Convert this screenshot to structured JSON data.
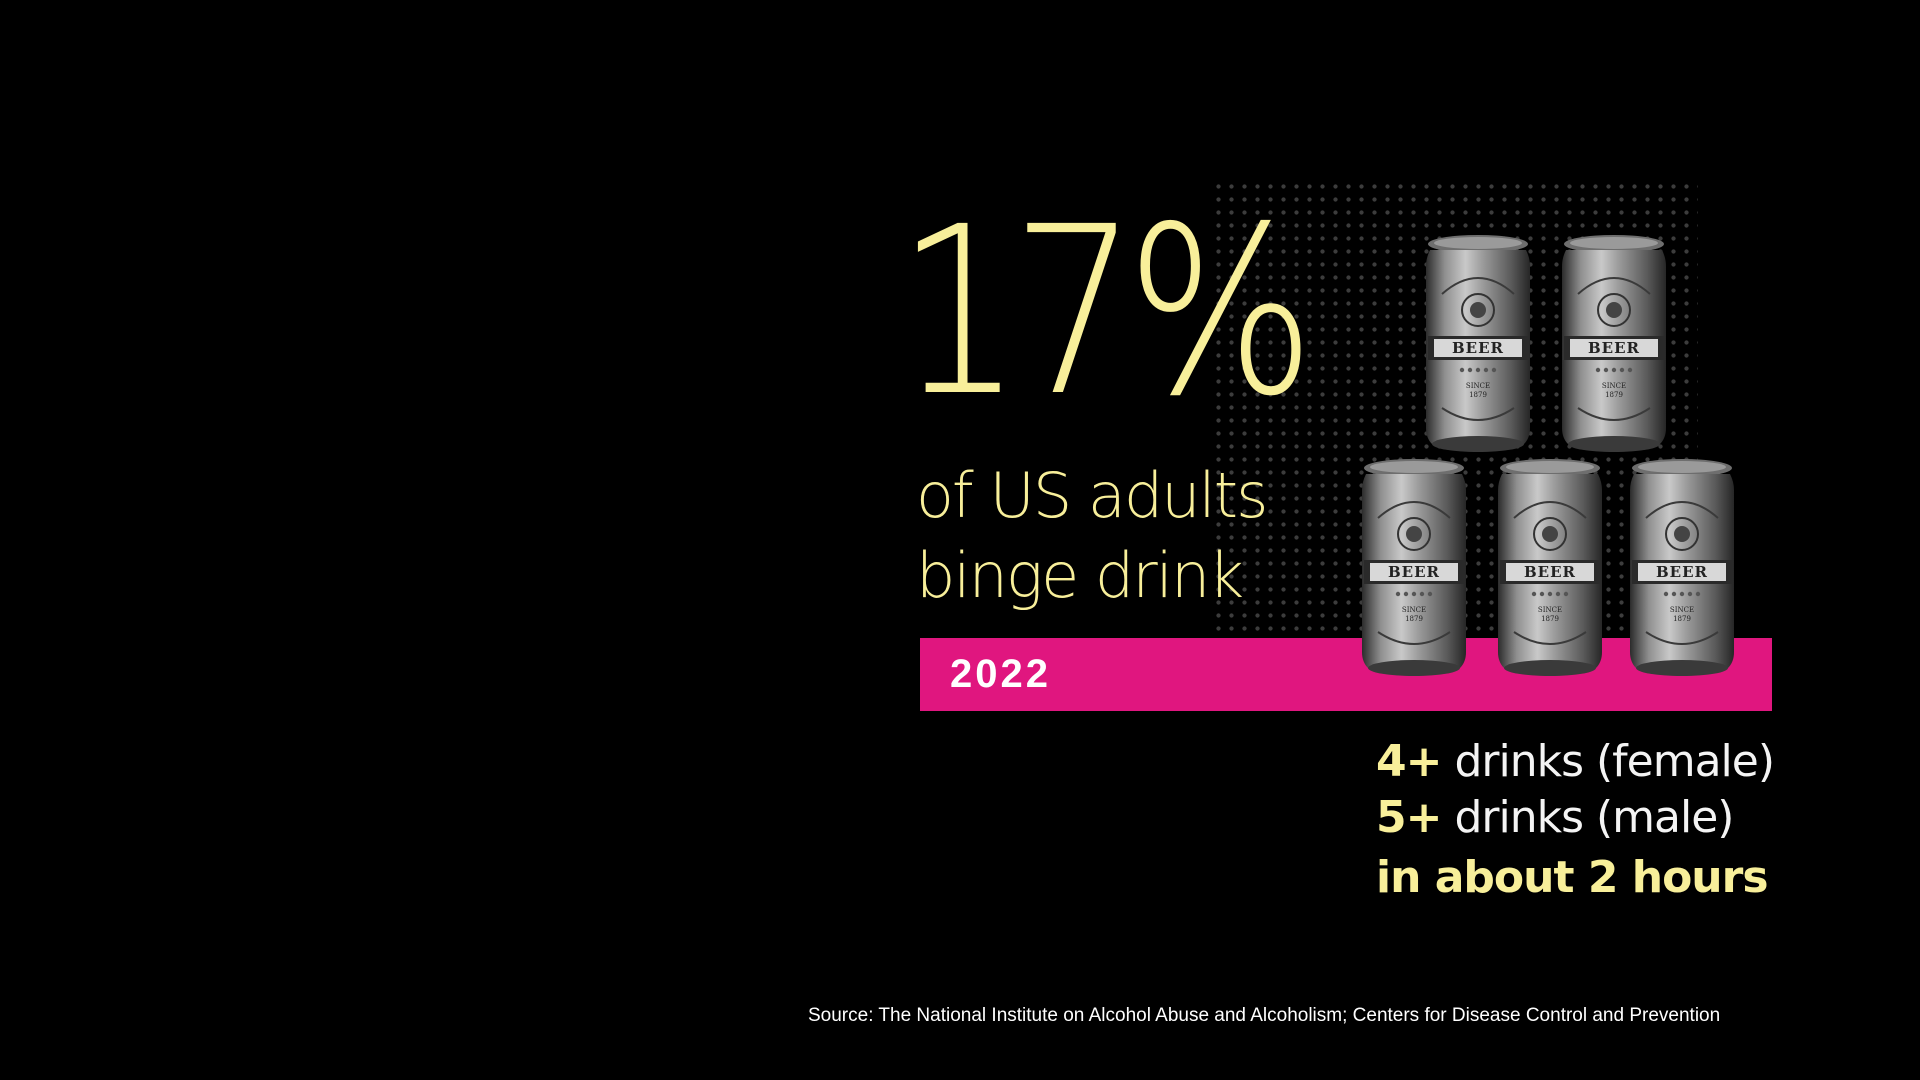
{
  "stat": {
    "value": "17%"
  },
  "subtitle": {
    "line1": "of US adults",
    "line2": "binge drink"
  },
  "year": "2022",
  "can_label": {
    "text": "BEER",
    "since": "SINCE",
    "year": "1879"
  },
  "definition": {
    "female_count": "4+",
    "female_text": " drinks (female)",
    "male_count": "5+",
    "male_text": " drinks (male)",
    "duration": "in about 2 hours"
  },
  "source": "Source: The National Institute on Alcohol Abuse and Alcoholism; Centers for Disease Control and Prevention",
  "colors": {
    "background": "#000000",
    "accent_yellow": "#f8ef9a",
    "bar_magenta": "#e0167f",
    "can_gray": "#8a8a8a"
  },
  "icons": {
    "can": "beer-can-icon"
  }
}
